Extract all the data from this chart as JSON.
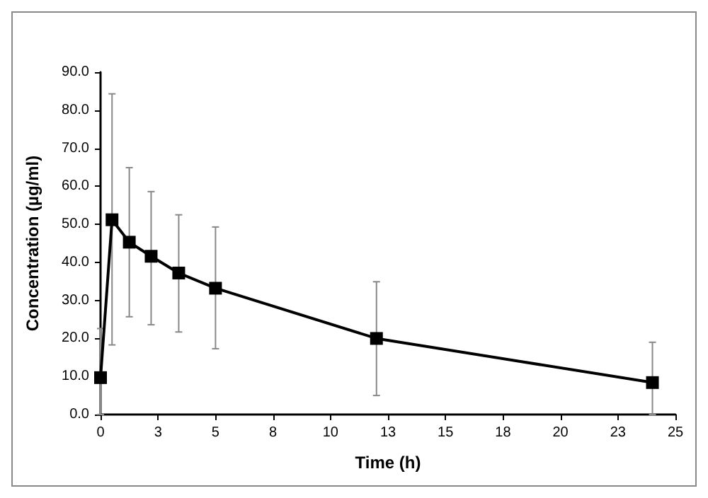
{
  "chart_data": {
    "type": "line",
    "xlabel": "Time (h)",
    "ylabel": "Concentration (µg/ml)",
    "x": [
      0,
      0.5,
      1.25,
      2.2,
      3.4,
      5,
      12,
      24
    ],
    "series": [
      {
        "color": "#000000",
        "values": [
          9.7,
          51.2,
          45.3,
          41.6,
          37.2,
          33.2,
          20.0,
          8.4
        ],
        "errors": [
          [
            0.0,
            22.6
          ],
          [
            18.3,
            84.3
          ],
          [
            25.7,
            64.9
          ],
          [
            23.6,
            58.6
          ],
          [
            21.7,
            52.5
          ],
          [
            17.3,
            49.3
          ],
          [
            5.0,
            34.9
          ],
          [
            0.0,
            19.0
          ]
        ]
      }
    ],
    "xlim": [
      0,
      25
    ],
    "xticks": [
      0,
      {
        "value": 2.5,
        "label": "3"
      },
      5,
      {
        "value": 7.5,
        "label": "8"
      },
      10,
      {
        "value": 12.5,
        "label": "13"
      },
      15,
      {
        "value": 17.5,
        "label": "18"
      },
      20,
      {
        "value": 22.5,
        "label": "23"
      },
      25
    ],
    "ylim": [
      0,
      90
    ],
    "yticks": [
      {
        "value": 0,
        "label": "0.0"
      },
      {
        "value": 10,
        "label": "10.0"
      },
      {
        "value": 20,
        "label": "20.0"
      },
      {
        "value": 30,
        "label": "30.0"
      },
      {
        "value": 40,
        "label": "40.0"
      },
      {
        "value": 50,
        "label": "50.0"
      },
      {
        "value": 60,
        "label": "60.0"
      },
      {
        "value": 70,
        "label": "70.0"
      },
      {
        "value": 80,
        "label": "80.0"
      },
      {
        "value": 90,
        "label": "90.0"
      }
    ],
    "grid": false,
    "marker": "square",
    "line_style": "solid"
  }
}
